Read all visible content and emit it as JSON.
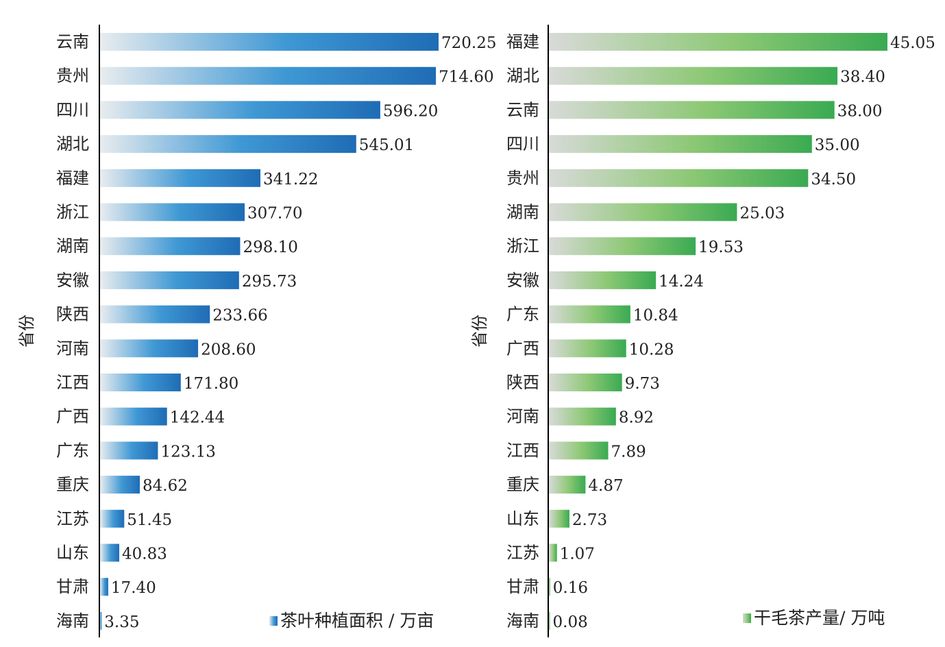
{
  "chart_data": [
    {
      "type": "bar",
      "orientation": "horizontal",
      "ylabel": "省份",
      "categories": [
        "云南",
        "贵州",
        "四川",
        "湖北",
        "福建",
        "浙江",
        "湖南",
        "安徽",
        "陕西",
        "河南",
        "江西",
        "广西",
        "广东",
        "重庆",
        "江苏",
        "山东",
        "甘肃",
        "海南"
      ],
      "series": [
        {
          "name": "茶叶种植面积 / 万亩",
          "values": [
            720.25,
            714.6,
            596.2,
            545.01,
            341.22,
            307.7,
            298.1,
            295.73,
            233.66,
            208.6,
            171.8,
            142.44,
            123.13,
            84.62,
            51.45,
            40.83,
            17.4,
            3.35
          ],
          "labels": [
            "720.25",
            "714.60",
            "596.20",
            "545.01",
            "341.22",
            "307.70",
            "298.10",
            "295.73",
            "233.66",
            "208.60",
            "171.80",
            "142.44",
            "123.13",
            "84.62",
            "51.45",
            "40.83",
            "17.40",
            "3.35"
          ]
        }
      ],
      "xlim": [
        0,
        720.25
      ],
      "legend_position": "bottom-right",
      "colors": {
        "start": "#e8ecef",
        "mid": "#3f98d4",
        "end": "#1f6cb5"
      }
    },
    {
      "type": "bar",
      "orientation": "horizontal",
      "ylabel": "省份",
      "categories": [
        "福建",
        "湖北",
        "云南",
        "四川",
        "贵州",
        "湖南",
        "浙江",
        "安徽",
        "广东",
        "广西",
        "陕西",
        "河南",
        "江西",
        "重庆",
        "山东",
        "江苏",
        "甘肃",
        "海南"
      ],
      "series": [
        {
          "name": "干毛茶产量/ 万吨",
          "values": [
            45.05,
            38.4,
            38.0,
            35.0,
            34.5,
            25.03,
            19.53,
            14.24,
            10.84,
            10.28,
            9.73,
            8.92,
            7.89,
            4.87,
            2.73,
            1.07,
            0.16,
            0.08
          ],
          "labels": [
            "45.05",
            "38.40",
            "38.00",
            "35.00",
            "34.50",
            "25.03",
            "19.53",
            "14.24",
            "10.84",
            "10.28",
            "9.73",
            "8.92",
            "7.89",
            "4.87",
            "2.73",
            "1.07",
            "0.16",
            "0.08"
          ]
        }
      ],
      "xlim": [
        0,
        45.05
      ],
      "legend_position": "bottom-right",
      "colors": {
        "start": "#d8dad8",
        "mid": "#8cc874",
        "end": "#3aaa52"
      }
    }
  ]
}
